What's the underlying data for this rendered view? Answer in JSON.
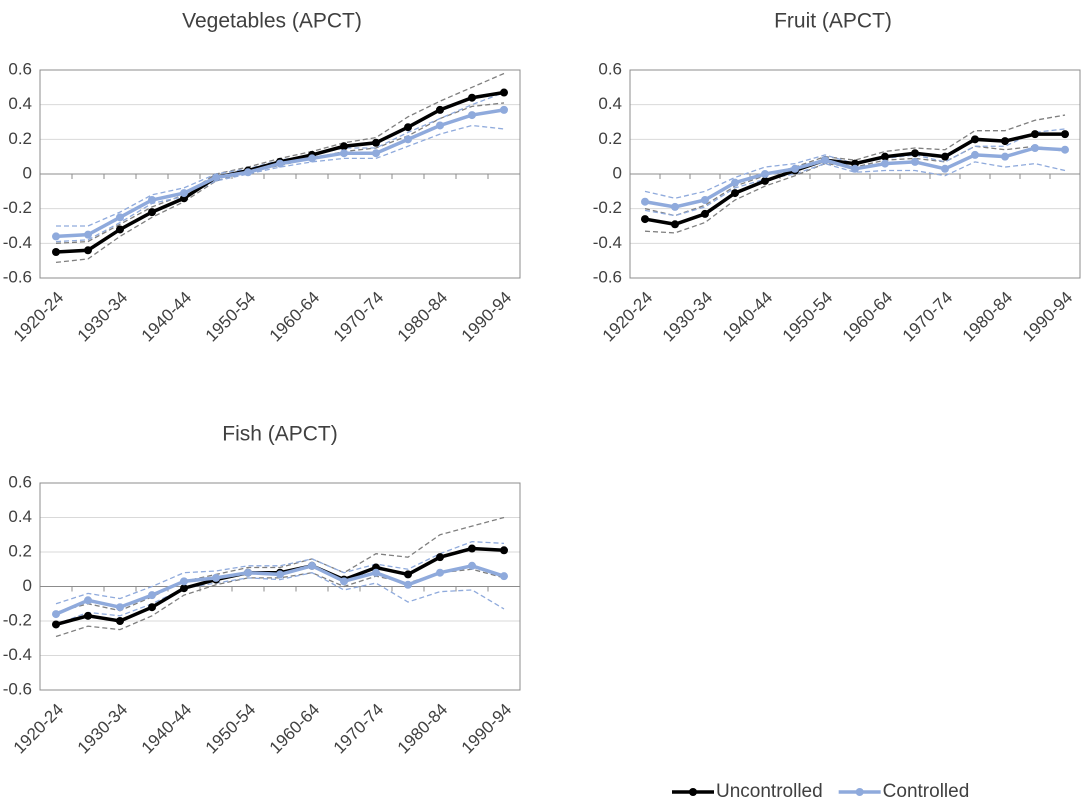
{
  "chart_data": [
    {
      "type": "line",
      "title": "Vegetables (APCT)",
      "categories": [
        "1920-24",
        null,
        "1930-34",
        null,
        "1940-44",
        null,
        "1950-54",
        null,
        "1960-64",
        null,
        "1970-74",
        null,
        "1980-84",
        null,
        "1990-94"
      ],
      "ylim": [
        -0.6,
        0.6
      ],
      "yticks": [
        -0.6,
        -0.4,
        -0.2,
        0,
        0.2,
        0.4,
        0.6
      ],
      "grid": true,
      "series": [
        {
          "values": [
            -0.45,
            -0.44,
            -0.32,
            -0.22,
            -0.14,
            -0.02,
            0.02,
            0.07,
            0.11,
            0.16,
            0.18,
            0.27,
            0.37,
            0.44,
            0.47
          ],
          "lower": [
            -0.51,
            -0.49,
            -0.36,
            -0.25,
            -0.16,
            -0.04,
            0.01,
            0.05,
            0.09,
            0.13,
            0.15,
            0.22,
            0.32,
            0.39,
            0.41
          ],
          "upper": [
            -0.4,
            -0.39,
            -0.29,
            -0.19,
            -0.12,
            0.0,
            0.04,
            0.09,
            0.13,
            0.18,
            0.21,
            0.33,
            0.42,
            0.5,
            0.58
          ]
        },
        {
          "values": [
            -0.36,
            -0.35,
            -0.25,
            -0.15,
            -0.11,
            -0.02,
            0.01,
            0.06,
            0.09,
            0.12,
            0.12,
            0.2,
            0.28,
            0.34,
            0.37
          ],
          "lower": [
            -0.39,
            -0.38,
            -0.28,
            -0.17,
            -0.13,
            -0.04,
            0.0,
            0.04,
            0.07,
            0.09,
            0.09,
            0.16,
            0.23,
            0.28,
            0.26
          ],
          "upper": [
            -0.3,
            -0.3,
            -0.22,
            -0.12,
            -0.08,
            0.0,
            0.03,
            0.08,
            0.11,
            0.15,
            0.15,
            0.24,
            0.32,
            0.4,
            0.47
          ]
        }
      ]
    },
    {
      "type": "line",
      "title": "Fruit (APCT)",
      "categories": [
        "1920-24",
        null,
        "1930-34",
        null,
        "1940-44",
        null,
        "1950-54",
        null,
        "1960-64",
        null,
        "1970-74",
        null,
        "1980-84",
        null,
        "1990-94"
      ],
      "ylim": [
        -0.6,
        0.6
      ],
      "yticks": [
        -0.6,
        -0.4,
        -0.2,
        0,
        0.2,
        0.4,
        0.6
      ],
      "grid": true,
      "series": [
        {
          "values": [
            -0.26,
            -0.29,
            -0.23,
            -0.11,
            -0.04,
            0.02,
            0.08,
            0.06,
            0.1,
            0.12,
            0.1,
            0.2,
            0.19,
            0.23,
            0.23
          ],
          "lower": [
            -0.33,
            -0.34,
            -0.28,
            -0.15,
            -0.07,
            -0.01,
            0.06,
            0.04,
            0.08,
            0.09,
            0.07,
            0.16,
            0.14,
            0.16,
            0.13
          ],
          "upper": [
            -0.2,
            -0.24,
            -0.18,
            -0.07,
            -0.01,
            0.04,
            0.1,
            0.08,
            0.13,
            0.15,
            0.14,
            0.25,
            0.25,
            0.31,
            0.34
          ]
        },
        {
          "values": [
            -0.16,
            -0.19,
            -0.15,
            -0.05,
            0.0,
            0.03,
            0.08,
            0.03,
            0.06,
            0.07,
            0.03,
            0.11,
            0.1,
            0.15,
            0.14
          ],
          "lower": [
            -0.21,
            -0.24,
            -0.19,
            -0.08,
            -0.03,
            0.0,
            0.06,
            0.01,
            0.02,
            0.02,
            -0.01,
            0.07,
            0.04,
            0.06,
            0.02
          ],
          "upper": [
            -0.1,
            -0.14,
            -0.1,
            -0.02,
            0.04,
            0.06,
            0.11,
            0.06,
            0.09,
            0.11,
            0.07,
            0.16,
            0.16,
            0.24,
            0.26
          ]
        }
      ]
    },
    {
      "type": "line",
      "title": "Fish (APCT)",
      "categories": [
        "1920-24",
        null,
        "1930-34",
        null,
        "1940-44",
        null,
        "1950-54",
        null,
        "1960-64",
        null,
        "1970-74",
        null,
        "1980-84",
        null,
        "1990-94"
      ],
      "ylim": [
        -0.6,
        0.6
      ],
      "yticks": [
        -0.6,
        -0.4,
        -0.2,
        0,
        0.2,
        0.4,
        0.6
      ],
      "grid": true,
      "series": [
        {
          "values": [
            -0.22,
            -0.17,
            -0.2,
            -0.12,
            -0.01,
            0.04,
            0.08,
            0.08,
            0.12,
            0.04,
            0.11,
            0.07,
            0.17,
            0.22,
            0.21
          ],
          "lower": [
            -0.29,
            -0.23,
            -0.25,
            -0.17,
            -0.05,
            0.01,
            0.05,
            0.05,
            0.08,
            0.0,
            0.06,
            0.02,
            0.08,
            0.1,
            0.05
          ],
          "upper": [
            -0.15,
            -0.1,
            -0.14,
            -0.06,
            0.03,
            0.07,
            0.11,
            0.11,
            0.16,
            0.08,
            0.19,
            0.17,
            0.3,
            0.35,
            0.4
          ]
        },
        {
          "values": [
            -0.16,
            -0.08,
            -0.12,
            -0.05,
            0.03,
            0.05,
            0.08,
            0.07,
            0.12,
            0.03,
            0.08,
            0.01,
            0.08,
            0.12,
            0.06
          ],
          "lower": [
            -0.22,
            -0.15,
            -0.17,
            -0.1,
            -0.01,
            0.02,
            0.05,
            0.04,
            0.08,
            -0.02,
            0.02,
            -0.09,
            -0.03,
            -0.02,
            -0.13
          ],
          "upper": [
            -0.1,
            -0.04,
            -0.07,
            0.0,
            0.08,
            0.09,
            0.12,
            0.12,
            0.16,
            0.08,
            0.13,
            0.1,
            0.19,
            0.26,
            0.25
          ]
        }
      ]
    }
  ],
  "legend": {
    "position": "bottom-right",
    "entries": [
      {
        "name": "Uncontrolled",
        "color": "#000000",
        "band_color": "#7f7f7f"
      },
      {
        "name": "Controlled",
        "color": "#8faadc",
        "band_color": "#8faadc"
      }
    ]
  }
}
